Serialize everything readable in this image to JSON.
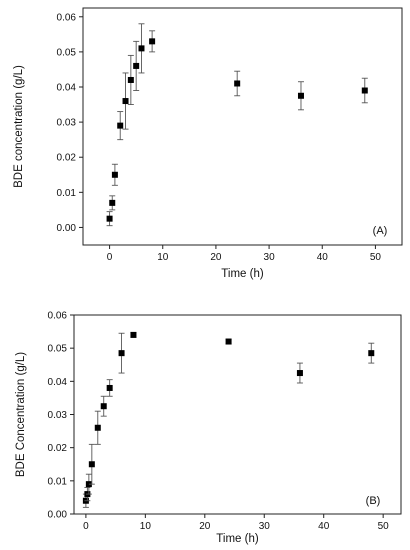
{
  "chart_data": [
    {
      "type": "scatter",
      "panel_label": "(A)",
      "xlabel": "Time (h)",
      "ylabel": "BDE concentration (g/L)",
      "xlim": [
        -5,
        55
      ],
      "ylim": [
        -0.005,
        0.0625
      ],
      "xticks": [
        0,
        10,
        20,
        30,
        40,
        50
      ],
      "xtick_labels": [
        "0",
        "10",
        "20",
        "30",
        "40",
        "50"
      ],
      "yticks": [
        0.0,
        0.01,
        0.02,
        0.03,
        0.04,
        0.05,
        0.06
      ],
      "ytick_labels": [
        "0.00",
        "0.01",
        "0.02",
        "0.03",
        "0.04",
        "0.05",
        "0.06"
      ],
      "grid": false,
      "marker_color": "#000000",
      "points": [
        {
          "x": 0,
          "y": 0.0025,
          "err": 0.002
        },
        {
          "x": 0.5,
          "y": 0.007,
          "err": 0.002
        },
        {
          "x": 1,
          "y": 0.015,
          "err": 0.003
        },
        {
          "x": 2,
          "y": 0.029,
          "err": 0.004
        },
        {
          "x": 3,
          "y": 0.036,
          "err": 0.008
        },
        {
          "x": 4,
          "y": 0.042,
          "err": 0.007
        },
        {
          "x": 5,
          "y": 0.046,
          "err": 0.007
        },
        {
          "x": 6,
          "y": 0.051,
          "err": 0.007
        },
        {
          "x": 8,
          "y": 0.053,
          "err": 0.003
        },
        {
          "x": 24,
          "y": 0.041,
          "err": 0.0035
        },
        {
          "x": 36,
          "y": 0.0375,
          "err": 0.004
        },
        {
          "x": 48,
          "y": 0.039,
          "err": 0.0035
        }
      ]
    },
    {
      "type": "scatter",
      "panel_label": "(B)",
      "xlabel": "Time (h)",
      "ylabel": "BDE Concentration (g/L)",
      "xlim": [
        -2,
        53
      ],
      "ylim": [
        0,
        0.06
      ],
      "xticks": [
        0,
        10,
        20,
        30,
        40,
        50
      ],
      "xtick_labels": [
        "0",
        "10",
        "20",
        "30",
        "40",
        "50"
      ],
      "yticks": [
        0.0,
        0.01,
        0.02,
        0.03,
        0.04,
        0.05,
        0.06
      ],
      "ytick_labels": [
        "0.00",
        "0.01",
        "0.02",
        "0.03",
        "0.04",
        "0.05",
        "0.06"
      ],
      "grid": false,
      "marker_color": "#000000",
      "points": [
        {
          "x": 0,
          "y": 0.004,
          "err": 0.002
        },
        {
          "x": 0.25,
          "y": 0.006,
          "err": 0.002
        },
        {
          "x": 0.5,
          "y": 0.009,
          "err": 0.003
        },
        {
          "x": 1,
          "y": 0.015,
          "err": 0.006
        },
        {
          "x": 2,
          "y": 0.026,
          "err": 0.005
        },
        {
          "x": 3,
          "y": 0.0325,
          "err": 0.003
        },
        {
          "x": 4,
          "y": 0.038,
          "err": 0.0025
        },
        {
          "x": 6,
          "y": 0.0485,
          "err": 0.006
        },
        {
          "x": 8,
          "y": 0.054,
          "err": 0.0007
        },
        {
          "x": 24,
          "y": 0.052,
          "err": 0.0007
        },
        {
          "x": 36,
          "y": 0.0425,
          "err": 0.003
        },
        {
          "x": 48,
          "y": 0.0485,
          "err": 0.003
        }
      ]
    }
  ]
}
